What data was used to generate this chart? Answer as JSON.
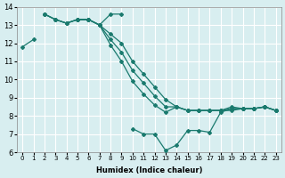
{
  "xlabel": "Humidex (Indice chaleur)",
  "bg_color": "#d8eef0",
  "line_color": "#1a7a6e",
  "grid_color": "#ffffff",
  "xlim": [
    -0.5,
    23.5
  ],
  "ylim": [
    6,
    14
  ],
  "yticks": [
    6,
    7,
    8,
    9,
    10,
    11,
    12,
    13,
    14
  ],
  "xticks": [
    0,
    1,
    2,
    3,
    4,
    5,
    6,
    7,
    8,
    9,
    10,
    11,
    12,
    13,
    14,
    15,
    16,
    17,
    18,
    19,
    20,
    21,
    22,
    23
  ],
  "series": [
    {
      "x": [
        0,
        1,
        2,
        3,
        4,
        5,
        6,
        7,
        8,
        9,
        10,
        11,
        12,
        13,
        14,
        15,
        16,
        17,
        18,
        19,
        20,
        21,
        22,
        23
      ],
      "y": [
        11.8,
        12.2,
        null,
        null,
        null,
        null,
        null,
        null,
        null,
        null,
        7.3,
        7.0,
        7.0,
        6.1,
        6.4,
        7.2,
        7.2,
        7.1,
        8.2,
        8.4,
        8.4,
        8.4,
        8.5,
        8.3
      ]
    },
    {
      "x": [
        5,
        6,
        7,
        8,
        9
      ],
      "y": [
        13.3,
        13.3,
        13.0,
        13.6,
        13.6
      ]
    },
    {
      "x": [
        2,
        3,
        4,
        5,
        6,
        7,
        8,
        9,
        10,
        11,
        12,
        13,
        14,
        15,
        16,
        17,
        18,
        19,
        20,
        21,
        22,
        23
      ],
      "y": [
        13.6,
        13.3,
        13.1,
        13.3,
        13.3,
        13.0,
        12.5,
        12.0,
        11.0,
        10.3,
        9.6,
        8.9,
        8.5,
        8.3,
        8.3,
        8.3,
        8.3,
        8.5,
        8.4,
        8.4,
        8.5,
        8.3
      ]
    },
    {
      "x": [
        2,
        3,
        4,
        5,
        6,
        7,
        8,
        9,
        10,
        11,
        12,
        13,
        14,
        15,
        16,
        17,
        18,
        19,
        20,
        21,
        22,
        23
      ],
      "y": [
        13.6,
        13.3,
        13.1,
        13.3,
        13.3,
        13.0,
        12.2,
        11.5,
        10.5,
        9.8,
        9.1,
        8.5,
        8.5,
        8.3,
        8.3,
        8.3,
        8.3,
        8.4,
        8.4,
        8.4,
        8.5,
        8.3
      ]
    },
    {
      "x": [
        2,
        3,
        4,
        5,
        6,
        7,
        8,
        9,
        10,
        11,
        12,
        13,
        14,
        15,
        16,
        17,
        18,
        19,
        20,
        21,
        22,
        23
      ],
      "y": [
        13.6,
        13.3,
        13.1,
        13.3,
        13.3,
        13.0,
        11.9,
        11.0,
        9.9,
        9.2,
        8.6,
        8.2,
        8.5,
        8.3,
        8.3,
        8.3,
        8.3,
        8.3,
        8.4,
        8.4,
        8.5,
        8.3
      ]
    }
  ]
}
